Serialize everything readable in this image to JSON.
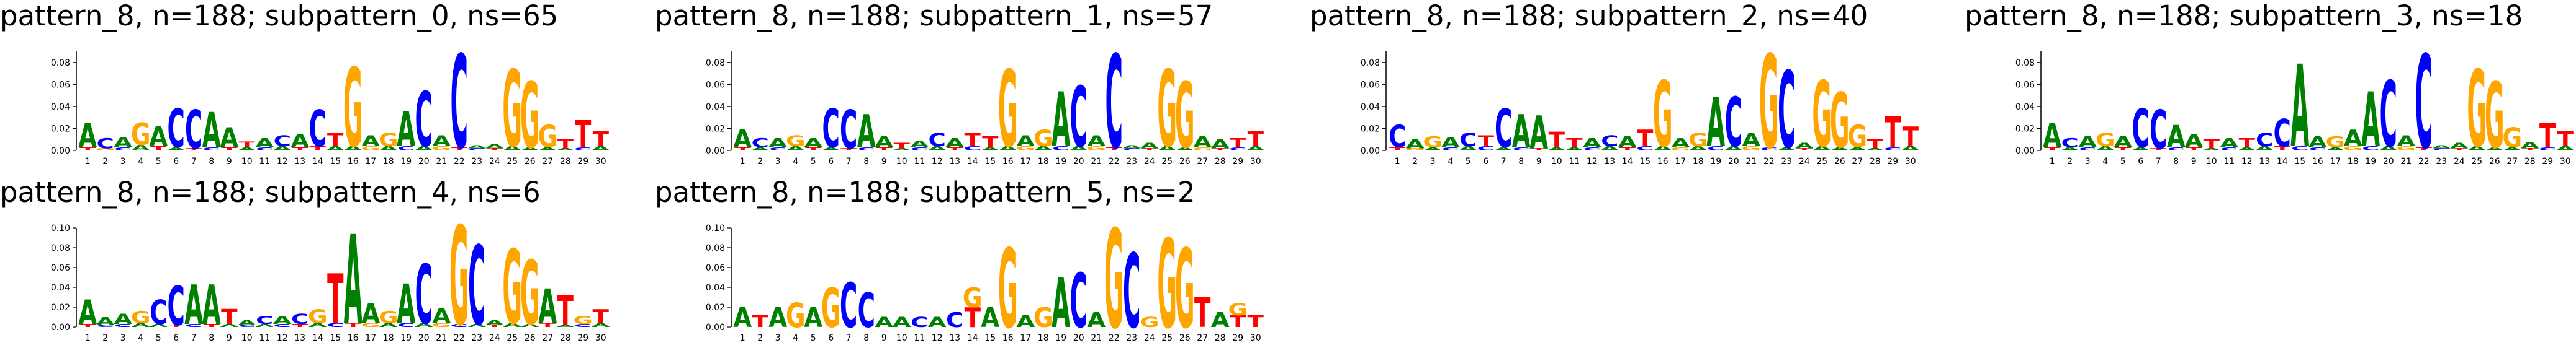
{
  "colors": {
    "A": "#008000",
    "C": "#0000ff",
    "G": "#ffa500",
    "T": "#ff0000"
  },
  "chart_data": [
    {
      "type": "sequence-logo",
      "title": "pattern_8, n=188; subpattern_0, ns=65",
      "ylim": [
        0,
        0.09
      ],
      "yticks": [
        "0.00",
        "0.02",
        "0.04",
        "0.06",
        "0.08"
      ],
      "positions": [
        "1",
        "2",
        "3",
        "4",
        "5",
        "6",
        "7",
        "8",
        "9",
        "10",
        "11",
        "12",
        "13",
        "14",
        "15",
        "16",
        "17",
        "18",
        "19",
        "20",
        "21",
        "22",
        "23",
        "24",
        "25",
        "26",
        "27",
        "28",
        "29",
        "30"
      ],
      "columns": [
        "A:.022,T:.003",
        "C:.009,G:.002",
        "A:.009,C:.003",
        "G:.02,A:.005",
        "A:.018,T:.004",
        "C:.035,A:.003",
        "C:.035,T:.002",
        "A:.032,C:.003",
        "A:.018,T:.003",
        "T:.005,A:.003",
        "A:.008,C:.003",
        "C:.01,A:.004",
        "A:.012,T:.003",
        "C:.033,T:.004",
        "T:.012,A:.004",
        "G:.072,A:.004",
        "A:.01,G:.004",
        "G:.012,A:.004",
        "A:.032,C:.004",
        "C:.05,A:.004",
        "A:.01,G:.004",
        "C:.085,T:.003",
        "A:.003,C:.002",
        "A:.004,T:.002",
        "G:.07,A:.004",
        "G:.06,A:.003",
        "G:.02,A:.003",
        "T:.008,A:.002",
        "T:.025,C:.003",
        "T:.014,A:.004"
      ]
    },
    {
      "type": "sequence-logo",
      "title": "pattern_8, n=188; subpattern_1, ns=57",
      "ylim": [
        0,
        0.09
      ],
      "yticks": [
        "0.00",
        "0.02",
        "0.04",
        "0.06",
        "0.08"
      ],
      "positions": [
        "1",
        "2",
        "3",
        "4",
        "5",
        "6",
        "7",
        "8",
        "9",
        "10",
        "11",
        "12",
        "13",
        "14",
        "15",
        "16",
        "17",
        "18",
        "19",
        "20",
        "21",
        "22",
        "23",
        "24",
        "25",
        "26",
        "27",
        "28",
        "29",
        "30"
      ],
      "columns": [
        "A:.016,T:.003",
        "C:.008,A:.003",
        "A:.008,C:.003",
        "G:.01,A:.004",
        "A:.008,T:.003",
        "C:.035,A:.003",
        "C:.035,T:.002",
        "A:.03,C:.003",
        "A:.01,T:.003",
        "T:.005,A:.002",
        "A:.006,C:.003",
        "C:.012,A:.004",
        "A:.008,T:.003",
        "T:.012,C:.004",
        "T:.01,A:.003",
        "G:.07,A:.004",
        "A:.01,G:.004",
        "G:.015,A:.004",
        "A:.05,C:.004",
        "C:.055,A:.004",
        "A:.01,G:.004",
        "C:.085,T:.003",
        "A:.003,C:.002",
        "A:.005,T:.002",
        "G:.07,A:.004",
        "G:.06,A:.003",
        "A:.01,G:.003",
        "A:.008,T:.002",
        "T:.008,C:.003",
        "T:.014,A:.004"
      ]
    },
    {
      "type": "sequence-logo",
      "title": "pattern_8, n=188; subpattern_2, ns=40",
      "ylim": [
        0,
        0.09
      ],
      "yticks": [
        "0.00",
        "0.02",
        "0.04",
        "0.06",
        "0.08"
      ],
      "positions": [
        "1",
        "2",
        "3",
        "4",
        "5",
        "6",
        "7",
        "8",
        "9",
        "10",
        "11",
        "12",
        "13",
        "14",
        "15",
        "16",
        "17",
        "18",
        "19",
        "20",
        "21",
        "22",
        "23",
        "24",
        "25",
        "26",
        "27",
        "28",
        "29",
        "30"
      ],
      "columns": [
        "C:.02,T:.003",
        "A:.008,G:.002",
        "G:.01,A:.003",
        "A:.009,C:.003",
        "C:.012,A:.004",
        "T:.01,C:.004",
        "C:.035,A:.003",
        "A:.03,C:.003",
        "A:.03,T:.002",
        "T:.014,A:.003",
        "T:.008,A:.003",
        "A:.008,C:.003",
        "C:.01,A:.004",
        "A:.01,T:.003",
        "T:.015,C:.004",
        "G:.06,A:.004",
        "A:.008,G:.003",
        "G:.012,A:.004",
        "A:.045,C:.004",
        "C:.045,A:.004",
        "A:.012,G:.004",
        "G:.085,C:.003",
        "C:.07,A:.003",
        "A:.005,T:.002",
        "G:.06,A:.004",
        "G:.05,A:.003",
        "G:.02,A:.003",
        "T:.008,A:.002",
        "T:.028,C:.003",
        "T:.018,A:.004"
      ]
    },
    {
      "type": "sequence-logo",
      "title": "pattern_8, n=188; subpattern_3, ns=18",
      "ylim": [
        0,
        0.09
      ],
      "yticks": [
        "0.00",
        "0.02",
        "0.04",
        "0.06",
        "0.08"
      ],
      "positions": [
        "1",
        "2",
        "3",
        "4",
        "5",
        "6",
        "7",
        "8",
        "9",
        "10",
        "11",
        "12",
        "13",
        "14",
        "15",
        "16",
        "17",
        "18",
        "19",
        "20",
        "21",
        "22",
        "23",
        "24",
        "25",
        "26",
        "27",
        "28",
        "29",
        "30"
      ],
      "columns": [
        "A:.022,T:.003",
        "C:.008,A:.003",
        "A:.01,C:.003",
        "G:.012,A:.004",
        "A:.01,T:.003",
        "C:.035,A:.003",
        "C:.035,T:.002",
        "A:.02,C:.003",
        "A:.012,T:.003",
        "T:.008,A:.002",
        "A:.008,C:.003",
        "T:.008,A:.003",
        "C:.012,A:.004",
        "C:.025,T:.004",
        "A:.075,C:.004",
        "A:.01,C:.003",
        "G:.01,A:.003",
        "A:.015,G:.004",
        "A:.05,C:.004",
        "C:.06,A:.004",
        "A:.01,G:.004",
        "C:.085,T:.003",
        "A:.003,C:.002",
        "A:.005,T:.002",
        "G:.07,A:.004",
        "G:.06,A:.003",
        "G:.018,A:.003",
        "A:.006,T:.002",
        "T:.022,C:.003",
        "T:.014,A:.004"
      ]
    },
    {
      "type": "sequence-logo",
      "title": "pattern_8, n=188; subpattern_4, ns=6",
      "ylim": [
        0,
        0.1
      ],
      "yticks": [
        "0.00",
        "0.02",
        "0.04",
        "0.06",
        "0.08",
        "0.10"
      ],
      "positions": [
        "1",
        "2",
        "3",
        "4",
        "5",
        "6",
        "7",
        "8",
        "9",
        "10",
        "11",
        "12",
        "13",
        "14",
        "15",
        "16",
        "17",
        "18",
        "19",
        "20",
        "21",
        "22",
        "23",
        "24",
        "25",
        "26",
        "27",
        "28",
        "29",
        "30"
      ],
      "columns": [
        "A:.025,T:.003",
        "A:.008,C:.002",
        "A:.01,C:.003",
        "G:.012,A:.004",
        "C:.025,A:.003",
        "C:.04,T:.002",
        "A:.04,C:.003",
        "A:.04,T:.003",
        "T:.015,A:.003",
        "A:.005,C:.002",
        "C:.008,A:.003",
        "A:.008,C:.003",
        "C:.01,T:.003",
        "G:.014,A:.004",
        "T:.05,C:.004",
        "A:.09,T:.004",
        "A:.02,G:.004",
        "G:.012,A:.004",
        "A:.04,C:.004",
        "C:.06,A:.004",
        "A:.015,G:.004",
        "G:.1,C:.003",
        "C:.08,A:.003",
        "A:.005,T:.002",
        "G:.075,A:.004",
        "G:.065,A:.003",
        "A:.035,T:.004",
        "T:.03,A:.002",
        "G:.008,C:.003",
        "T:.014,A:.004"
      ]
    },
    {
      "type": "sequence-logo",
      "title": "pattern_8, n=188; subpattern_5, ns=2",
      "ylim": [
        0,
        0.1
      ],
      "yticks": [
        "0.00",
        "0.02",
        "0.04",
        "0.06",
        "0.08",
        "0.10"
      ],
      "positions": [
        "1",
        "2",
        "3",
        "4",
        "5",
        "6",
        "7",
        "8",
        "9",
        "10",
        "11",
        "12",
        "13",
        "14",
        "15",
        "16",
        "17",
        "18",
        "19",
        "20",
        "21",
        "22",
        "23",
        "24",
        "25",
        "26",
        "27",
        "28",
        "29",
        "30"
      ],
      "columns": [
        "A:.02",
        "T:.012",
        "A:.02",
        "G:.025",
        "A:.02",
        "G:.04",
        "C:.045",
        "C:.035",
        "A:.01",
        "A:.01",
        "C:.01",
        "A:.01",
        "C:.015",
        "T:.02,G:.02",
        "A:.02",
        "G:.08",
        "A:.012",
        "G:.02",
        "A:.05",
        "C:.055",
        "A:.015",
        "G:.1",
        "C:.075",
        "G:.01",
        "G:.09",
        "G:.08",
        "T:.03",
        "A:.015",
        "T:.012,G:.012",
        "T:.012"
      ]
    }
  ]
}
